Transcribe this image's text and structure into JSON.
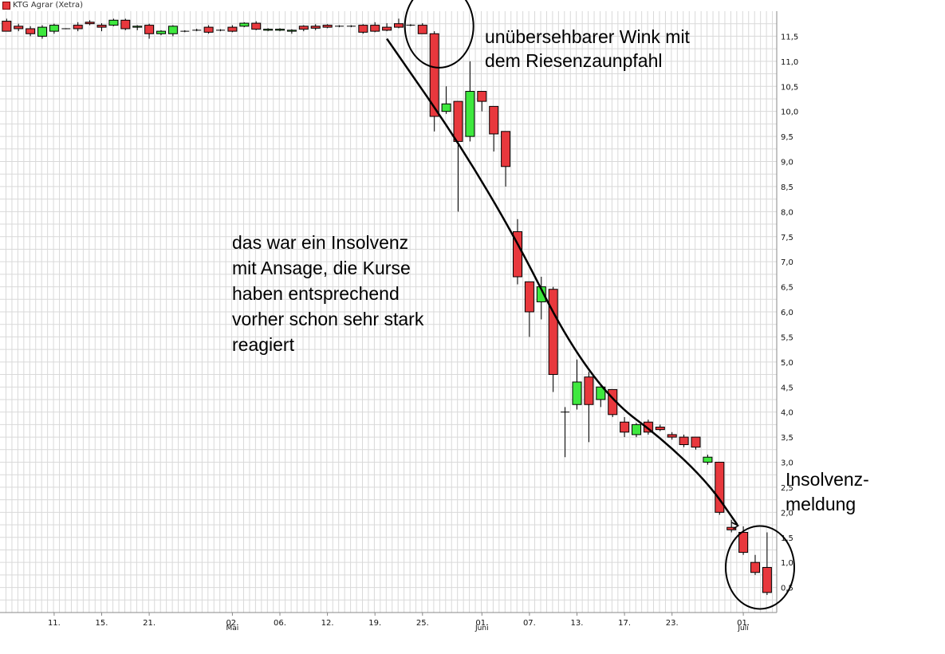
{
  "legend": {
    "label": "KTG Agrar (Xetra)"
  },
  "annotations": {
    "top": "unübersehbarer Wink mit\ndem Riesenzaunpfahl",
    "middle": "das war ein Insolvenz\nmit Ansage, die Kurse\nhaben entsprechend\nvorher schon sehr stark\nreagiert",
    "right": "Insolvenz-\nmeldung"
  },
  "colors": {
    "up": "#3ee83e",
    "down": "#e8383d",
    "grid": "#d9d9d9",
    "trend": "#000000"
  },
  "chart_data": {
    "type": "candlestick",
    "title": "",
    "xlabel": "",
    "ylabel": "",
    "ylim": [
      0,
      12
    ],
    "y_ticks": [
      "0,5",
      "1,0",
      "1,5",
      "2,0",
      "2,5",
      "3,0",
      "3,5",
      "4,0",
      "4,5",
      "5,0",
      "5,5",
      "6,0",
      "6,5",
      "7,0",
      "7,5",
      "8,0",
      "8,5",
      "9,0",
      "9,5",
      "10,0",
      "10,5",
      "11,0",
      "11,5"
    ],
    "x_ticks": [
      {
        "label": "11.",
        "index": 4
      },
      {
        "label": "15.",
        "index": 8
      },
      {
        "label": "21.",
        "index": 12
      },
      {
        "label": "02.",
        "sub": "Mai",
        "index": 19
      },
      {
        "label": "06.",
        "index": 23
      },
      {
        "label": "12.",
        "index": 27
      },
      {
        "label": "19.",
        "index": 31
      },
      {
        "label": "25.",
        "index": 35
      },
      {
        "label": "01.",
        "sub": "Juni",
        "index": 40
      },
      {
        "label": "07.",
        "index": 44
      },
      {
        "label": "13.",
        "index": 48
      },
      {
        "label": "17.",
        "index": 52
      },
      {
        "label": "23.",
        "index": 56
      },
      {
        "label": "01.",
        "sub": "Juli",
        "index": 62
      }
    ],
    "candles": [
      {
        "o": 11.8,
        "h": 11.85,
        "l": 11.6,
        "c": 11.6
      },
      {
        "o": 11.7,
        "h": 11.75,
        "l": 11.6,
        "c": 11.65
      },
      {
        "o": 11.65,
        "h": 11.7,
        "l": 11.5,
        "c": 11.55
      },
      {
        "o": 11.5,
        "h": 11.72,
        "l": 11.45,
        "c": 11.68
      },
      {
        "o": 11.6,
        "h": 11.75,
        "l": 11.55,
        "c": 11.72
      },
      {
        "o": 11.65,
        "h": 11.66,
        "l": 11.64,
        "c": 11.65
      },
      {
        "o": 11.72,
        "h": 11.78,
        "l": 11.6,
        "c": 11.65
      },
      {
        "o": 11.78,
        "h": 11.82,
        "l": 11.72,
        "c": 11.75
      },
      {
        "o": 11.72,
        "h": 11.76,
        "l": 11.6,
        "c": 11.68
      },
      {
        "o": 11.72,
        "h": 11.85,
        "l": 11.7,
        "c": 11.82
      },
      {
        "o": 11.82,
        "h": 11.85,
        "l": 11.62,
        "c": 11.65
      },
      {
        "o": 11.68,
        "h": 11.72,
        "l": 11.62,
        "c": 11.7
      },
      {
        "o": 11.72,
        "h": 11.75,
        "l": 11.45,
        "c": 11.55
      },
      {
        "o": 11.55,
        "h": 11.62,
        "l": 11.52,
        "c": 11.6
      },
      {
        "o": 11.55,
        "h": 11.72,
        "l": 11.5,
        "c": 11.7
      },
      {
        "o": 11.6,
        "h": 11.62,
        "l": 11.58,
        "c": 11.6
      },
      {
        "o": 11.62,
        "h": 11.65,
        "l": 11.6,
        "c": 11.62
      },
      {
        "o": 11.68,
        "h": 11.72,
        "l": 11.55,
        "c": 11.58
      },
      {
        "o": 11.62,
        "h": 11.64,
        "l": 11.6,
        "c": 11.62
      },
      {
        "o": 11.68,
        "h": 11.72,
        "l": 11.58,
        "c": 11.6
      },
      {
        "o": 11.7,
        "h": 11.78,
        "l": 11.68,
        "c": 11.76
      },
      {
        "o": 11.76,
        "h": 11.8,
        "l": 11.62,
        "c": 11.64
      },
      {
        "o": 11.62,
        "h": 11.66,
        "l": 11.6,
        "c": 11.64
      },
      {
        "o": 11.62,
        "h": 11.66,
        "l": 11.6,
        "c": 11.64
      },
      {
        "o": 11.6,
        "h": 11.64,
        "l": 11.55,
        "c": 11.62
      },
      {
        "o": 11.7,
        "h": 11.72,
        "l": 11.6,
        "c": 11.64
      },
      {
        "o": 11.7,
        "h": 11.74,
        "l": 11.62,
        "c": 11.66
      },
      {
        "o": 11.72,
        "h": 11.74,
        "l": 11.66,
        "c": 11.68
      },
      {
        "o": 11.7,
        "h": 11.72,
        "l": 11.68,
        "c": 11.7
      },
      {
        "o": 11.7,
        "h": 11.72,
        "l": 11.68,
        "c": 11.7
      },
      {
        "o": 11.72,
        "h": 11.74,
        "l": 11.55,
        "c": 11.58
      },
      {
        "o": 11.72,
        "h": 11.78,
        "l": 11.58,
        "c": 11.6
      },
      {
        "o": 11.68,
        "h": 11.76,
        "l": 11.6,
        "c": 11.62
      },
      {
        "o": 11.75,
        "h": 11.85,
        "l": 11.66,
        "c": 11.68
      },
      {
        "o": 11.72,
        "h": 11.74,
        "l": 11.7,
        "c": 11.72
      },
      {
        "o": 11.72,
        "h": 11.76,
        "l": 11.55,
        "c": 11.55
      },
      {
        "o": 11.55,
        "h": 11.6,
        "l": 9.6,
        "c": 9.9
      },
      {
        "o": 10.0,
        "h": 10.5,
        "l": 9.95,
        "c": 10.15
      },
      {
        "o": 10.2,
        "h": 10.2,
        "l": 8.0,
        "c": 9.4
      },
      {
        "o": 9.5,
        "h": 11.0,
        "l": 9.4,
        "c": 10.4
      },
      {
        "o": 10.4,
        "h": 10.4,
        "l": 10.0,
        "c": 10.2
      },
      {
        "o": 10.1,
        "h": 10.1,
        "l": 9.2,
        "c": 9.55
      },
      {
        "o": 9.6,
        "h": 9.6,
        "l": 8.5,
        "c": 8.9
      },
      {
        "o": 7.6,
        "h": 7.85,
        "l": 6.55,
        "c": 6.7
      },
      {
        "o": 6.6,
        "h": 6.6,
        "l": 5.5,
        "c": 6.0
      },
      {
        "o": 6.2,
        "h": 6.7,
        "l": 5.85,
        "c": 6.5
      },
      {
        "o": 6.45,
        "h": 6.5,
        "l": 4.4,
        "c": 4.75
      },
      {
        "o": 4.0,
        "h": 4.1,
        "l": 3.1,
        "c": 4.0
      },
      {
        "o": 4.15,
        "h": 5.05,
        "l": 4.05,
        "c": 4.6
      },
      {
        "o": 4.7,
        "h": 4.8,
        "l": 3.4,
        "c": 4.15
      },
      {
        "o": 4.25,
        "h": 4.5,
        "l": 4.1,
        "c": 4.5
      },
      {
        "o": 4.45,
        "h": 4.45,
        "l": 3.9,
        "c": 3.95
      },
      {
        "o": 3.8,
        "h": 3.9,
        "l": 3.5,
        "c": 3.6
      },
      {
        "o": 3.55,
        "h": 3.78,
        "l": 3.5,
        "c": 3.75
      },
      {
        "o": 3.8,
        "h": 3.85,
        "l": 3.55,
        "c": 3.6
      },
      {
        "o": 3.7,
        "h": 3.75,
        "l": 3.62,
        "c": 3.65
      },
      {
        "o": 3.55,
        "h": 3.6,
        "l": 3.45,
        "c": 3.5
      },
      {
        "o": 3.5,
        "h": 3.55,
        "l": 3.3,
        "c": 3.35
      },
      {
        "o": 3.5,
        "h": 3.5,
        "l": 3.25,
        "c": 3.3
      },
      {
        "o": 3.0,
        "h": 3.15,
        "l": 2.95,
        "c": 3.1
      },
      {
        "o": 3.0,
        "h": 3.0,
        "l": 1.95,
        "c": 2.0
      },
      {
        "o": 1.7,
        "h": 1.85,
        "l": 1.6,
        "c": 1.65
      },
      {
        "o": 1.6,
        "h": 1.72,
        "l": 1.15,
        "c": 1.2
      },
      {
        "o": 1.0,
        "h": 1.15,
        "l": 0.75,
        "c": 0.8
      },
      {
        "o": 0.9,
        "h": 1.6,
        "l": 0.35,
        "c": 0.4
      }
    ],
    "trendline": [
      {
        "index": 32,
        "y": 11.45
      },
      {
        "index": 38,
        "y": 9.4
      },
      {
        "index": 43,
        "y": 7.4
      },
      {
        "index": 47,
        "y": 5.5
      },
      {
        "index": 51,
        "y": 4.2
      },
      {
        "index": 55,
        "y": 3.5
      },
      {
        "index": 59,
        "y": 2.6
      },
      {
        "index": 61.5,
        "y": 1.75
      }
    ],
    "highlight_circles": [
      {
        "center_index": 36,
        "center_y": 11.7
      },
      {
        "center_index": 63,
        "center_y": 0.9
      }
    ]
  }
}
